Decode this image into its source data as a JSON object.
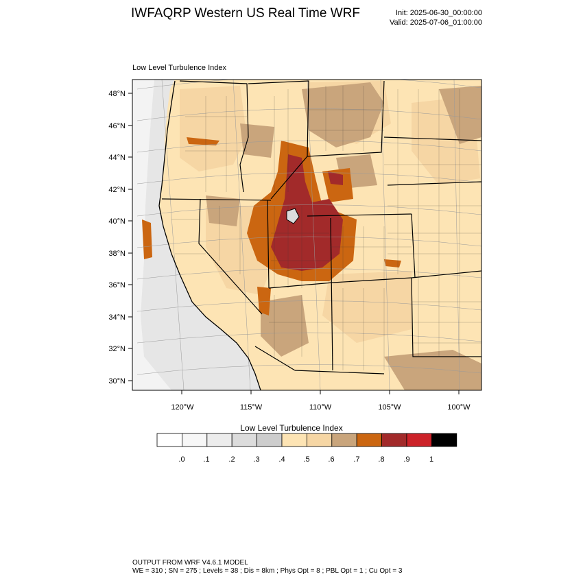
{
  "title": "IWFAQRP Western US Real Time WRF",
  "init": "Init: 2025-06-30_00:00:00",
  "valid": "Valid: 2025-07-06_01:00:00",
  "map_title": "Low Level Turbulence Index",
  "lat_labels": [
    "48°N",
    "46°N",
    "44°N",
    "42°N",
    "40°N",
    "38°N",
    "36°N",
    "34°N",
    "32°N",
    "30°N"
  ],
  "lon_labels": [
    "120°W",
    "115°W",
    "110°W",
    "105°W",
    "100°W"
  ],
  "colorbar": {
    "title": "Low Level Turbulence Index",
    "colors": [
      "#ffffff",
      "#f7f7f7",
      "#ececec",
      "#dcdcdc",
      "#cdcdcd",
      "#fde4b4",
      "#f6d6a4",
      "#c9a57c",
      "#cb6611",
      "#a22a2a",
      "#cc2229",
      "#000000"
    ],
    "labels": [
      ".0",
      ".1",
      ".2",
      ".3",
      ".4",
      ".5",
      ".6",
      ".7",
      ".8",
      ".9",
      "1"
    ]
  },
  "footer": {
    "line1": "OUTPUT FROM WRF V4.6.1 MODEL",
    "line2": "WE = 310 ; SN = 275 ; Levels = 38 ; Dis = 8km ; Phys Opt = 8 ; PBL Opt = 1 ; Cu Opt = 3"
  }
}
